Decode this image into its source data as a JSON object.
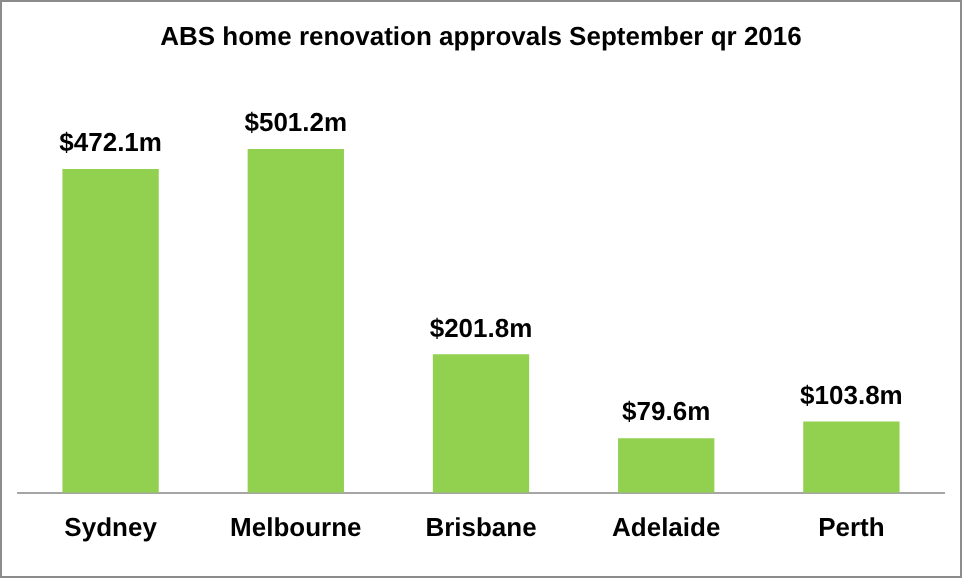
{
  "chart_data": {
    "type": "bar",
    "title": "ABS home renovation approvals September qr 2016",
    "categories": [
      "Sydney",
      "Melbourne",
      "Brisbane",
      "Adelaide",
      "Perth"
    ],
    "values": [
      472.1,
      501.2,
      201.8,
      79.6,
      103.8
    ],
    "value_labels": [
      "$472.1m",
      "$501.2m",
      "$201.8m",
      "$79.6m",
      "$103.8m"
    ],
    "color": "#92d050",
    "grid": false,
    "legend": false
  }
}
